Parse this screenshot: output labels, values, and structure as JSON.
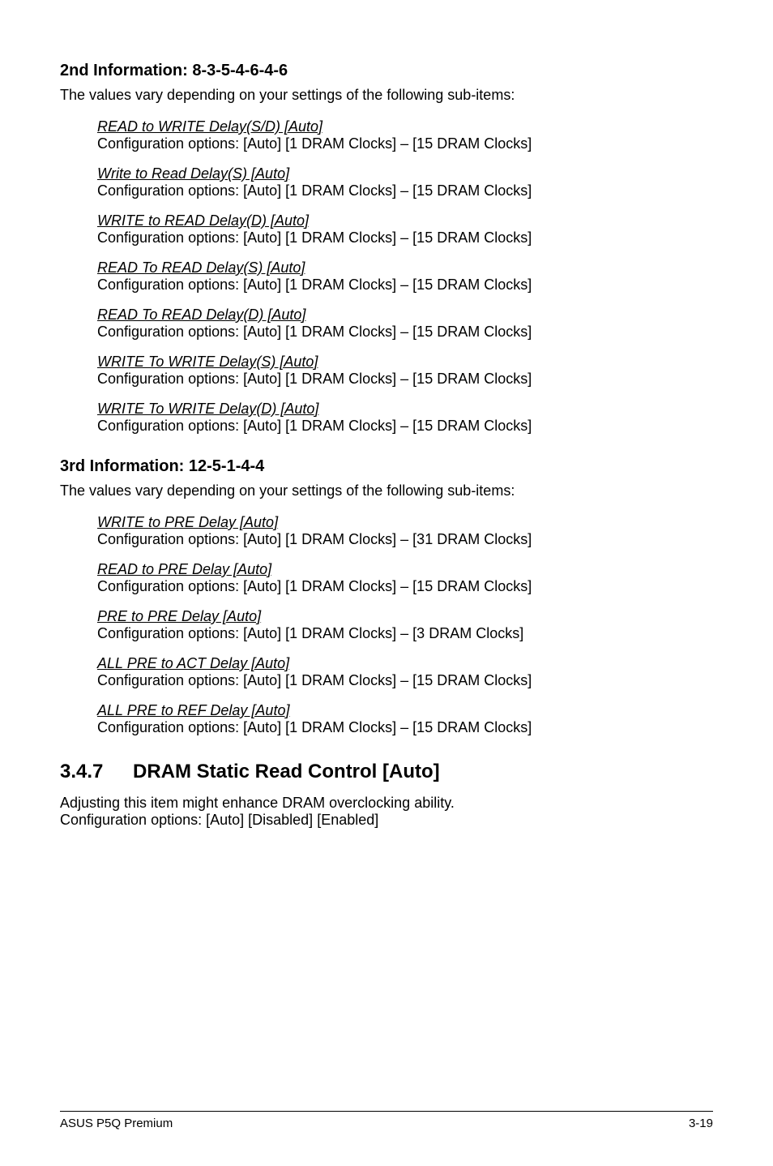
{
  "section2": {
    "heading": "2nd Information: 8-3-5-4-6-4-6",
    "intro": "The values vary depending on your settings of the following sub-items:",
    "items": [
      {
        "title": "READ to WRITE Delay(S/D) [Auto]",
        "opts": "Configuration options: [Auto] [1 DRAM Clocks] – [15 DRAM Clocks]"
      },
      {
        "title": "Write to Read Delay(S) [Auto]",
        "opts": "Configuration options: [Auto] [1 DRAM Clocks] – [15 DRAM Clocks]"
      },
      {
        "title": "WRITE to READ Delay(D) [Auto]",
        "opts": "Configuration options: [Auto] [1 DRAM Clocks] – [15 DRAM Clocks]"
      },
      {
        "title": "READ To READ Delay(S) [Auto]",
        "opts": "Configuration options: [Auto] [1 DRAM Clocks] – [15 DRAM Clocks]"
      },
      {
        "title": "READ To READ Delay(D) [Auto]",
        "opts": "Configuration options: [Auto] [1 DRAM Clocks] – [15 DRAM Clocks]"
      },
      {
        "title": "WRITE To WRITE Delay(S) [Auto]",
        "opts": "Configuration options: [Auto] [1 DRAM Clocks] – [15 DRAM Clocks]"
      },
      {
        "title": "WRITE To WRITE Delay(D) [Auto]",
        "opts": "Configuration options: [Auto] [1 DRAM Clocks] – [15 DRAM Clocks]"
      }
    ]
  },
  "section3": {
    "heading": "3rd Information: 12-5-1-4-4",
    "intro": "The values vary depending on your settings of the following sub-items:",
    "items": [
      {
        "title": "WRITE to PRE Delay [Auto]",
        "opts": "Configuration options: [Auto] [1 DRAM Clocks] – [31 DRAM Clocks]"
      },
      {
        "title": "READ to PRE Delay [Auto]",
        "opts": "Configuration options: [Auto] [1 DRAM Clocks] – [15 DRAM Clocks]"
      },
      {
        "title": "PRE to PRE Delay [Auto]",
        "opts": "Configuration options: [Auto] [1 DRAM Clocks] – [3 DRAM Clocks]"
      },
      {
        "title": "ALL PRE to ACT Delay [Auto]",
        "opts": "Configuration options: [Auto] [1 DRAM Clocks] – [15 DRAM Clocks]"
      },
      {
        "title": "ALL PRE to REF Delay [Auto]",
        "opts": "Configuration options: [Auto] [1 DRAM Clocks] – [15 DRAM Clocks]"
      }
    ]
  },
  "section347": {
    "num": "3.4.7",
    "title": "DRAM Static Read Control [Auto]",
    "body1": "Adjusting this item might enhance DRAM overclocking ability.",
    "body2": "Configuration options: [Auto] [Disabled] [Enabled]"
  },
  "footer": {
    "left": "ASUS P5Q Premium",
    "right": "3-19"
  }
}
